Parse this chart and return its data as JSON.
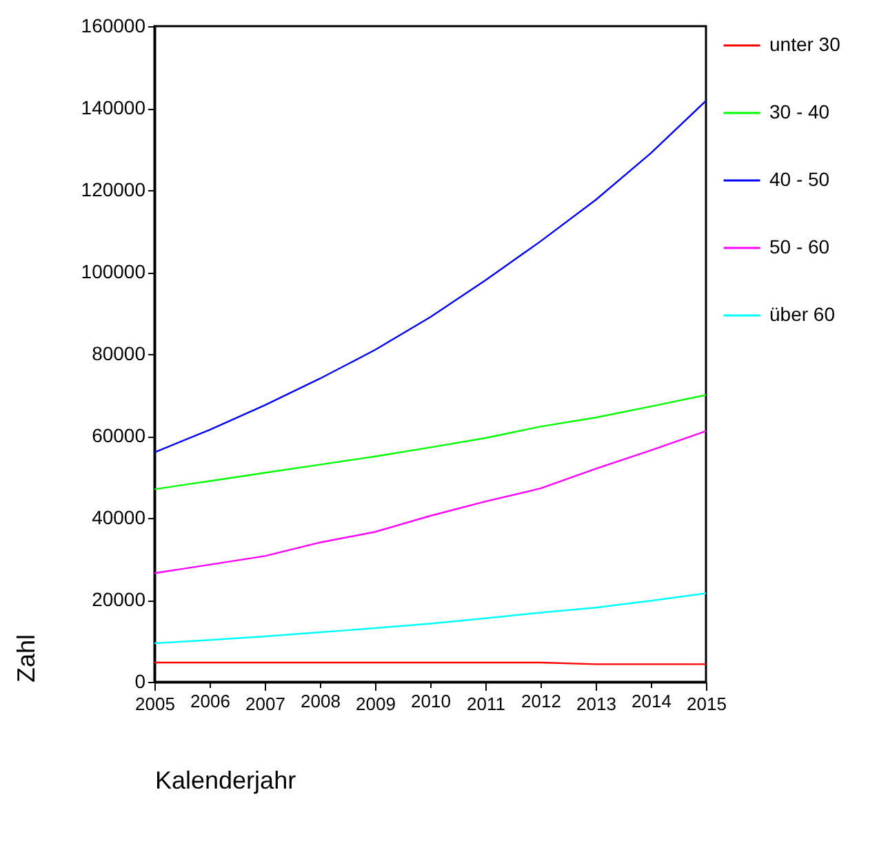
{
  "chart_data": {
    "type": "line",
    "xlabel": "Kalenderjahr",
    "ylabel": "Zahl",
    "x": [
      2005,
      2006,
      2007,
      2008,
      2009,
      2010,
      2011,
      2012,
      2013,
      2014,
      2015
    ],
    "series": [
      {
        "name": "unter 30",
        "color": "#ff0000",
        "values": [
          4700,
          4700,
          4700,
          4700,
          4700,
          4700,
          4700,
          4700,
          4300,
          4300,
          4300
        ]
      },
      {
        "name": "30 - 40",
        "color": "#00ff00",
        "values": [
          47000,
          49000,
          51000,
          53000,
          55000,
          57200,
          59500,
          62300,
          64500,
          67200,
          70000
        ]
      },
      {
        "name": "40 - 50",
        "color": "#0000ff",
        "values": [
          56000,
          61500,
          67500,
          74000,
          81000,
          89000,
          98000,
          107500,
          117600,
          129000,
          141800
        ]
      },
      {
        "name": "50 - 60",
        "color": "#ff00ff",
        "values": [
          26500,
          28600,
          30700,
          34000,
          36600,
          40500,
          44000,
          47200,
          52000,
          56500,
          61200
        ]
      },
      {
        "name": "über 60",
        "color": "#00ffff",
        "values": [
          9400,
          10200,
          11100,
          12100,
          13100,
          14200,
          15500,
          16900,
          18100,
          19800,
          21600
        ]
      }
    ],
    "xlim": [
      2005,
      2015
    ],
    "xticks": [
      2005,
      2006,
      2007,
      2008,
      2009,
      2010,
      2011,
      2012,
      2013,
      2014,
      2015
    ],
    "ylim": [
      0,
      160000
    ],
    "yticks": [
      0,
      20000,
      40000,
      60000,
      80000,
      100000,
      120000,
      140000,
      160000
    ],
    "grid": false,
    "legend": "right",
    "marker": "none",
    "line_style": "solid"
  }
}
